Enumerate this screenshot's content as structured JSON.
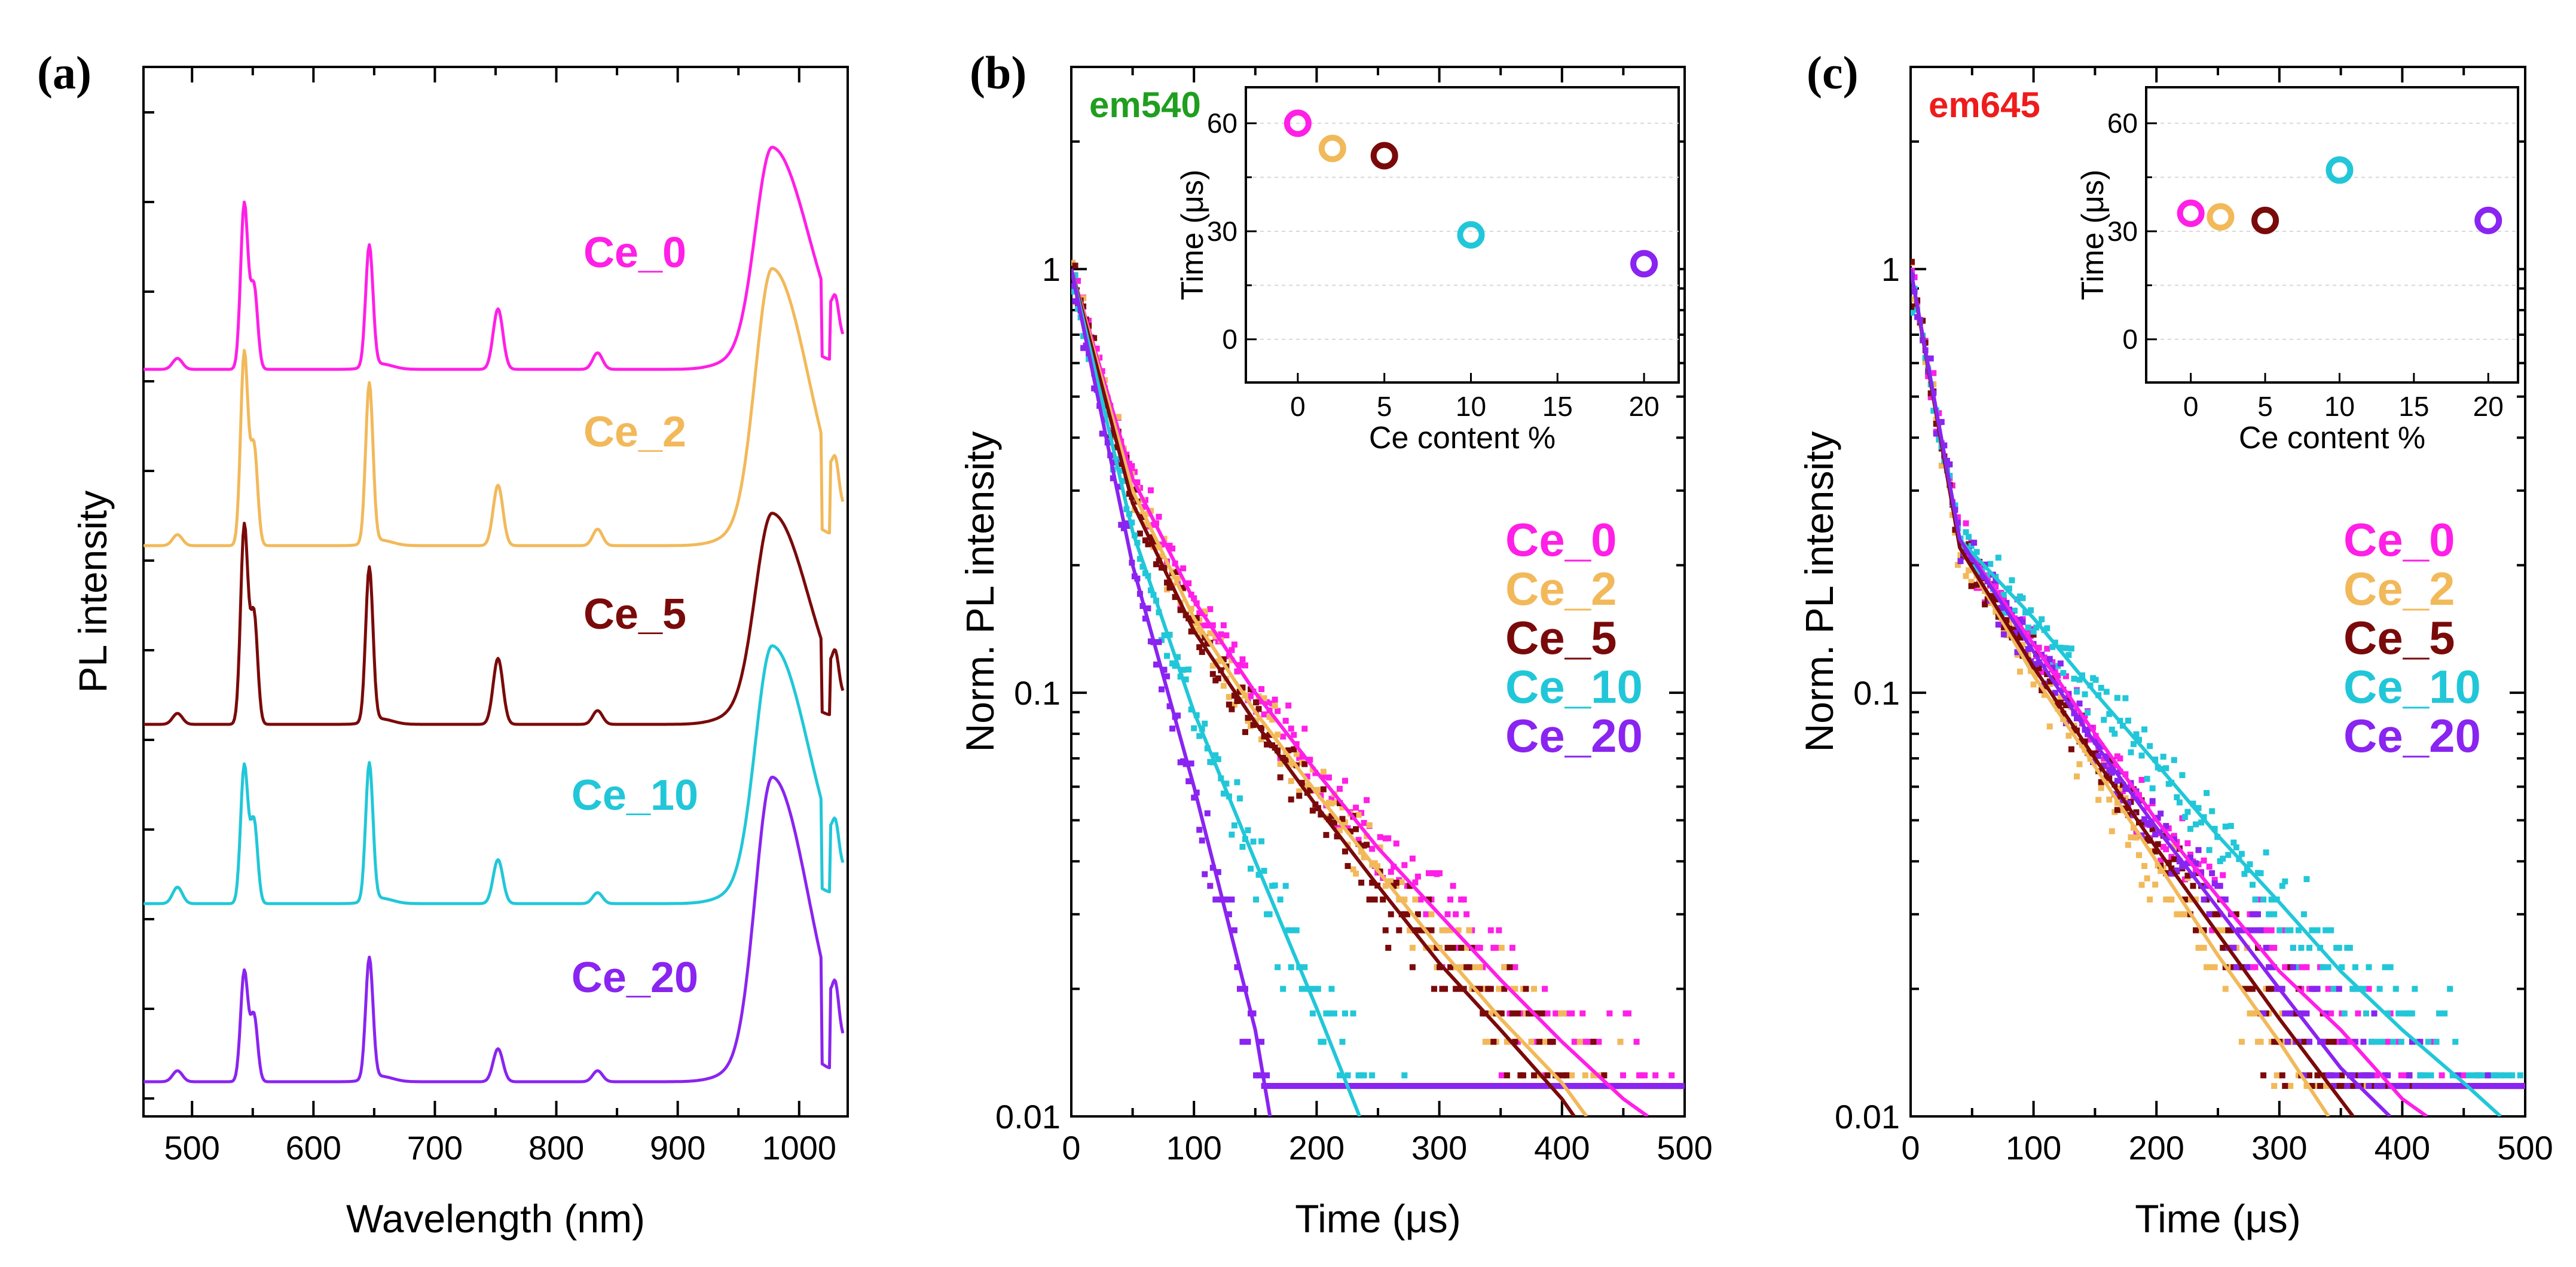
{
  "chart_data": [
    {
      "panel": "(a)",
      "type": "line",
      "xlabel": "Wavelength (nm)",
      "ylabel": "PL intensity",
      "xlim": [
        460,
        1040
      ],
      "xticks": [
        500,
        600,
        700,
        800,
        900,
        1000
      ],
      "series": [
        {
          "name": "Ce_0",
          "color": "#ff1fe6",
          "peak_positions_nm": [
            488,
            543,
            551,
            646,
            752,
            834,
            978,
            1030
          ],
          "peak_relative_heights": [
            0.04,
            0.6,
            0.3,
            0.44,
            0.22,
            0.06,
            0.8,
            0.09
          ]
        },
        {
          "name": "Ce_2",
          "color": "#f2b95a",
          "peak_positions_nm": [
            488,
            543,
            551,
            646,
            752,
            834,
            978,
            1030
          ],
          "peak_relative_heights": [
            0.04,
            0.7,
            0.36,
            0.58,
            0.22,
            0.06,
            1.0,
            0.1
          ]
        },
        {
          "name": "Ce_5",
          "color": "#7a0a0a",
          "peak_positions_nm": [
            488,
            543,
            551,
            646,
            752,
            834,
            978,
            1030
          ],
          "peak_relative_heights": [
            0.04,
            0.72,
            0.4,
            0.56,
            0.24,
            0.05,
            0.76,
            0.1
          ]
        },
        {
          "name": "Ce_10",
          "color": "#21c7d8",
          "peak_positions_nm": [
            488,
            543,
            551,
            646,
            752,
            834,
            978,
            1030
          ],
          "peak_relative_heights": [
            0.06,
            0.5,
            0.3,
            0.5,
            0.16,
            0.04,
            0.93,
            0.1
          ]
        },
        {
          "name": "Ce_20",
          "color": "#8a24f0",
          "peak_positions_nm": [
            488,
            543,
            551,
            646,
            752,
            834,
            978,
            1030
          ],
          "peak_relative_heights": [
            0.04,
            0.4,
            0.24,
            0.44,
            0.12,
            0.04,
            1.1,
            0.12
          ]
        }
      ]
    },
    {
      "panel": "(b)",
      "type": "scatter",
      "annotation": "em540",
      "annotation_color": "#1f9e1f",
      "xlabel": "Time (μs)",
      "ylabel": "Norm. PL intensity",
      "xlim": [
        0,
        500
      ],
      "ylim": [
        0.01,
        3
      ],
      "yscale": "log",
      "xticks": [
        0,
        100,
        200,
        300,
        400,
        500
      ],
      "yticks": [
        0.01,
        0.1,
        1
      ],
      "ytick_labels": [
        "0.01",
        "0.1",
        "1"
      ],
      "series": [
        {
          "name": "Ce_0",
          "color": "#ff1fe6",
          "fit_x": [
            0,
            50,
            100,
            150,
            200,
            250,
            300,
            350,
            400,
            450,
            470
          ],
          "fit_y": [
            1.0,
            0.32,
            0.165,
            0.1,
            0.065,
            0.043,
            0.03,
            0.021,
            0.015,
            0.011,
            0.01
          ]
        },
        {
          "name": "Ce_2",
          "color": "#f2b95a",
          "fit_x": [
            0,
            50,
            100,
            150,
            200,
            250,
            300,
            350,
            400,
            420
          ],
          "fit_y": [
            1.0,
            0.3,
            0.15,
            0.09,
            0.058,
            0.038,
            0.025,
            0.017,
            0.012,
            0.01
          ]
        },
        {
          "name": "Ce_5",
          "color": "#7a0a0a",
          "fit_x": [
            0,
            50,
            100,
            150,
            200,
            250,
            300,
            350,
            400,
            410
          ],
          "fit_y": [
            1.0,
            0.28,
            0.14,
            0.085,
            0.054,
            0.035,
            0.023,
            0.016,
            0.011,
            0.01
          ]
        },
        {
          "name": "Ce_10",
          "color": "#21c7d8",
          "fit_x": [
            0,
            50,
            100,
            150,
            200,
            235
          ],
          "fit_y": [
            1.0,
            0.24,
            0.09,
            0.04,
            0.018,
            0.01
          ]
        },
        {
          "name": "Ce_20",
          "color": "#8a24f0",
          "fit_x": [
            0,
            50,
            100,
            150,
            162
          ],
          "fit_y": [
            1.0,
            0.2,
            0.06,
            0.016,
            0.01
          ]
        }
      ],
      "inset": {
        "type": "scatter",
        "xlabel": "Ce content %",
        "ylabel": "Time (μs)",
        "xlim": [
          -3,
          22
        ],
        "ylim": [
          -12,
          70
        ],
        "xticks": [
          0,
          5,
          10,
          15,
          20
        ],
        "yticks": [
          0,
          30,
          60
        ],
        "points": [
          {
            "name": "Ce_0",
            "x": 0,
            "y": 60,
            "color": "#ff1fe6"
          },
          {
            "name": "Ce_2",
            "x": 2,
            "y": 53,
            "color": "#f2b95a"
          },
          {
            "name": "Ce_5",
            "x": 5,
            "y": 51,
            "color": "#7a0a0a"
          },
          {
            "name": "Ce_10",
            "x": 10,
            "y": 29,
            "color": "#21c7d8"
          },
          {
            "name": "Ce_20",
            "x": 20,
            "y": 21,
            "color": "#8a24f0"
          }
        ]
      }
    },
    {
      "panel": "(c)",
      "type": "scatter",
      "annotation": "em645",
      "annotation_color": "#ee1c1c",
      "xlabel": "Time (μs)",
      "ylabel": "Norm. PL intensity",
      "xlim": [
        0,
        500
      ],
      "ylim": [
        0.01,
        3
      ],
      "yscale": "log",
      "xticks": [
        0,
        100,
        200,
        300,
        400,
        500
      ],
      "yticks": [
        0.01,
        0.1,
        1
      ],
      "ytick_labels": [
        "0.01",
        "0.1",
        "1"
      ],
      "series": [
        {
          "name": "Ce_0",
          "color": "#ff1fe6",
          "fit_x": [
            0,
            40,
            100,
            150,
            200,
            250,
            300,
            350,
            400,
            420
          ],
          "fit_y": [
            1.0,
            0.23,
            0.13,
            0.08,
            0.05,
            0.033,
            0.022,
            0.016,
            0.011,
            0.01
          ]
        },
        {
          "name": "Ce_2",
          "color": "#f2b95a",
          "fit_x": [
            0,
            40,
            100,
            150,
            200,
            250,
            300,
            340
          ],
          "fit_y": [
            1.0,
            0.22,
            0.11,
            0.067,
            0.04,
            0.024,
            0.015,
            0.01
          ]
        },
        {
          "name": "Ce_5",
          "color": "#7a0a0a",
          "fit_x": [
            0,
            40,
            100,
            150,
            200,
            250,
            300,
            360
          ],
          "fit_y": [
            1.0,
            0.22,
            0.115,
            0.07,
            0.043,
            0.027,
            0.017,
            0.01
          ]
        },
        {
          "name": "Ce_10",
          "color": "#21c7d8",
          "fit_x": [
            0,
            40,
            100,
            150,
            200,
            250,
            300,
            350,
            400,
            450,
            480
          ],
          "fit_y": [
            1.0,
            0.23,
            0.15,
            0.1,
            0.068,
            0.046,
            0.032,
            0.022,
            0.016,
            0.012,
            0.01
          ]
        },
        {
          "name": "Ce_20",
          "color": "#8a24f0",
          "fit_x": [
            0,
            40,
            100,
            150,
            200,
            250,
            300,
            350,
            390
          ],
          "fit_y": [
            1.0,
            0.23,
            0.125,
            0.076,
            0.048,
            0.031,
            0.02,
            0.013,
            0.01
          ]
        }
      ],
      "inset": {
        "type": "scatter",
        "xlabel": "Ce content %",
        "ylabel": "Time (μs)",
        "xlim": [
          -3,
          22
        ],
        "ylim": [
          -12,
          70
        ],
        "xticks": [
          0,
          5,
          10,
          15,
          20
        ],
        "yticks": [
          0,
          30,
          60
        ],
        "points": [
          {
            "name": "Ce_0",
            "x": 0,
            "y": 35,
            "color": "#ff1fe6"
          },
          {
            "name": "Ce_2",
            "x": 2,
            "y": 34,
            "color": "#f2b95a"
          },
          {
            "name": "Ce_5",
            "x": 5,
            "y": 33,
            "color": "#7a0a0a"
          },
          {
            "name": "Ce_10",
            "x": 10,
            "y": 47,
            "color": "#21c7d8"
          },
          {
            "name": "Ce_20",
            "x": 20,
            "y": 33,
            "color": "#8a24f0"
          }
        ]
      }
    }
  ]
}
